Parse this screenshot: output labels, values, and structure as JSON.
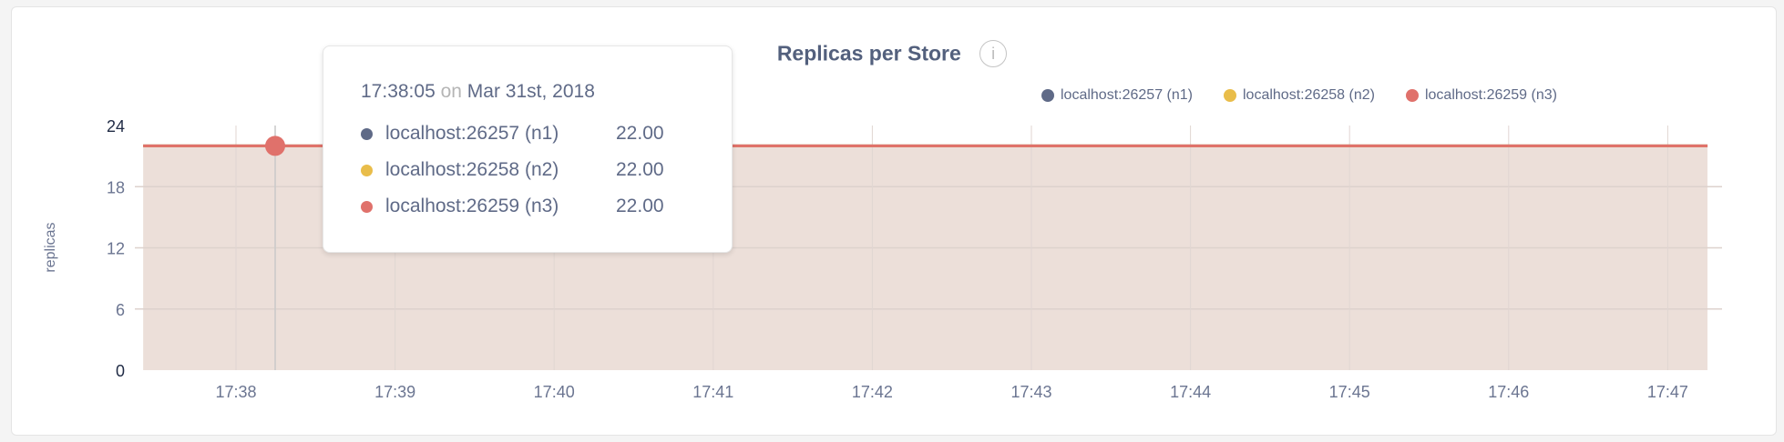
{
  "chart_data": {
    "type": "area",
    "title": "Replicas per Store",
    "ylabel": "replicas",
    "xlabel": "",
    "ylim": [
      0,
      24
    ],
    "yticks": [
      "0",
      "6",
      "12",
      "18",
      "24"
    ],
    "xticks": [
      "17:38",
      "17:39",
      "17:40",
      "17:41",
      "17:42",
      "17:43",
      "17:44",
      "17:45",
      "17:46",
      "17:47"
    ],
    "x_range": [
      "17:37:25",
      "17:47:15"
    ],
    "grid": true,
    "legend_position": "top-right",
    "series": [
      {
        "name": "localhost:26257 (n1)",
        "color": "#5f6a87",
        "x": [
          "17:37:25",
          "17:47:15"
        ],
        "values": [
          22,
          22
        ]
      },
      {
        "name": "localhost:26258 (n2)",
        "color": "#e9bd4a",
        "x": [
          "17:37:25",
          "17:47:15"
        ],
        "values": [
          22,
          22
        ]
      },
      {
        "name": "localhost:26259 (n3)",
        "color": "#e0716b",
        "x": [
          "17:37:25",
          "17:47:15"
        ],
        "values": [
          22,
          22
        ]
      }
    ],
    "fill_color": "#ecdfd9"
  },
  "info_icon": "info-icon",
  "tooltip": {
    "time": "17:38:05",
    "on": "on",
    "date": "Mar 31st, 2018",
    "rows": [
      {
        "label": "localhost:26257 (n1)",
        "value": "22.00",
        "color": "#5f6a87"
      },
      {
        "label": "localhost:26258 (n2)",
        "value": "22.00",
        "color": "#e9bd4a"
      },
      {
        "label": "localhost:26259 (n3)",
        "value": "22.00",
        "color": "#e0716b"
      }
    ]
  }
}
